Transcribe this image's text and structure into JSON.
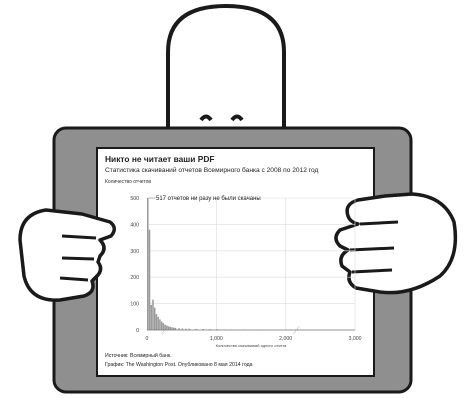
{
  "chart_data": {
    "type": "bar",
    "title": "Никто не читает ваши PDF",
    "subtitle": "Статистика скачиваний отчетов Всемирного банка с 2008 по 2012 год",
    "ylabel": "Количество отчетов",
    "xlabel": "Количество скачиваний одного отчета",
    "yticks": [
      "0",
      "100",
      "200",
      "300",
      "400",
      "500"
    ],
    "xticks": [
      "0",
      "1,000",
      "2,000",
      "3,000"
    ],
    "ylim": [
      0,
      500
    ],
    "xlim": [
      0,
      3000
    ],
    "annotation": "517 отчетов ни разу не были скачаны",
    "source": "Источник: Всемирный банк.",
    "credit": "График: The Washington Post. Опубликовано 8 мая 2014 года",
    "grid": true,
    "bin_width": 25,
    "x": [
      0,
      25,
      50,
      75,
      100,
      125,
      150,
      175,
      200,
      225,
      250,
      275,
      300,
      325,
      350,
      375,
      400,
      450,
      500,
      550,
      600,
      700,
      800,
      900,
      1000,
      1100,
      1200,
      1400,
      1600,
      1800,
      2000,
      2200,
      2400,
      2600
    ],
    "values": [
      517,
      380,
      95,
      115,
      85,
      60,
      50,
      40,
      32,
      26,
      20,
      17,
      14,
      12,
      10,
      9,
      8,
      7,
      6,
      5,
      5,
      4,
      4,
      3,
      3,
      2,
      2,
      2,
      2,
      1,
      1,
      1,
      1,
      1
    ],
    "colors": {
      "bar": "#9a9a9a",
      "grid": "#dcdcdc",
      "axis": "#777777",
      "text": "#222222"
    }
  }
}
